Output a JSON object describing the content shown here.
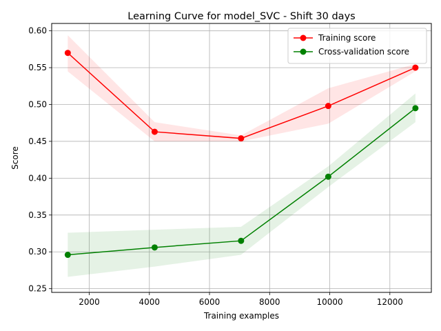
{
  "chart_data": {
    "type": "line",
    "title": "Learning Curve for model_SVC - Shift 30 days",
    "xlabel": "Training examples",
    "ylabel": "Score",
    "xlim": [
      750,
      13380
    ],
    "ylim": [
      0.245,
      0.61
    ],
    "xticks": [
      2000,
      4000,
      6000,
      8000,
      10000,
      12000
    ],
    "yticks": [
      0.25,
      0.3,
      0.35,
      0.4,
      0.45,
      0.5,
      0.55,
      0.6
    ],
    "grid": true,
    "legend_position": "top-right",
    "x": [
      1285,
      4175,
      7050,
      9950,
      12850
    ],
    "series": [
      {
        "name": "Training score",
        "color": "#ff0000",
        "values": [
          0.57,
          0.463,
          0.454,
          0.498,
          0.55
        ],
        "band_lower": [
          0.545,
          0.45,
          0.45,
          0.474,
          0.545
        ],
        "band_upper": [
          0.594,
          0.476,
          0.458,
          0.522,
          0.555
        ]
      },
      {
        "name": "Cross-validation score",
        "color": "#008000",
        "values": [
          0.296,
          0.306,
          0.315,
          0.402,
          0.495
        ],
        "band_lower": [
          0.266,
          0.28,
          0.296,
          0.388,
          0.476
        ],
        "band_upper": [
          0.326,
          0.33,
          0.334,
          0.416,
          0.515
        ]
      }
    ]
  }
}
